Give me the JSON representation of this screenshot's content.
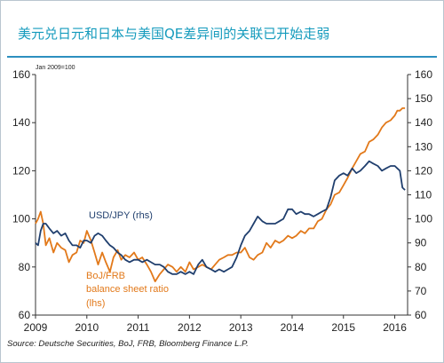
{
  "title": "美元兑日元和日本与美国QE差异间的关联已开始走弱",
  "source": "Source: Deutsche Securities, BoJ, FRB, Bloomberg Finance L.P.",
  "chart_data": {
    "type": "line",
    "note": "Jan 2009=100",
    "x_ticks": [
      "2009",
      "2010",
      "2011",
      "2012",
      "2013",
      "2014",
      "2015",
      "2016"
    ],
    "xlim": [
      2009.0,
      2016.25
    ],
    "left_axis": {
      "ylim": [
        60,
        160
      ],
      "ticks": [
        60,
        80,
        100,
        120,
        140,
        160
      ]
    },
    "right_axis": {
      "ylim": [
        60,
        160
      ],
      "ticks": [
        60,
        70,
        80,
        90,
        100,
        110,
        120,
        130,
        140,
        150,
        160
      ]
    },
    "annotations": {
      "usd_jpy": "USD/JPY (rhs)",
      "boj_frb_line1": "BoJ/FRB",
      "boj_frb_line2": "balance sheet ratio",
      "boj_frb_line3": "(lhs)"
    },
    "series": [
      {
        "name": "USD/JPY (rhs)",
        "axis": "right",
        "color": "#203f6e",
        "x": [
          2009.0,
          2009.05,
          2009.1,
          2009.15,
          2009.2,
          2009.27,
          2009.35,
          2009.42,
          2009.5,
          2009.58,
          2009.65,
          2009.72,
          2009.8,
          2009.87,
          2009.94,
          2010.0,
          2010.08,
          2010.15,
          2010.22,
          2010.3,
          2010.37,
          2010.45,
          2010.52,
          2010.6,
          2010.67,
          2010.75,
          2010.83,
          2010.92,
          2011.0,
          2011.08,
          2011.17,
          2011.25,
          2011.33,
          2011.42,
          2011.5,
          2011.58,
          2011.67,
          2011.75,
          2011.83,
          2011.92,
          2012.0,
          2012.08,
          2012.17,
          2012.25,
          2012.33,
          2012.42,
          2012.5,
          2012.58,
          2012.67,
          2012.75,
          2012.83,
          2012.92,
          2013.0,
          2013.08,
          2013.17,
          2013.25,
          2013.33,
          2013.42,
          2013.5,
          2013.58,
          2013.67,
          2013.75,
          2013.83,
          2013.92,
          2014.0,
          2014.08,
          2014.17,
          2014.25,
          2014.33,
          2014.42,
          2014.5,
          2014.58,
          2014.67,
          2014.75,
          2014.83,
          2014.92,
          2015.0,
          2015.08,
          2015.17,
          2015.25,
          2015.33,
          2015.42,
          2015.5,
          2015.58,
          2015.67,
          2015.75,
          2015.83,
          2015.92,
          2016.0,
          2016.05,
          2016.1,
          2016.15,
          2016.2
        ],
        "values": [
          90,
          89,
          95,
          98,
          98,
          96,
          94,
          95,
          93,
          94,
          91,
          89,
          89,
          88,
          91,
          91,
          90,
          93,
          94,
          93,
          91,
          89,
          88,
          86,
          85,
          83,
          82,
          83,
          83,
          82,
          83,
          82,
          81,
          81,
          80,
          78,
          77,
          77,
          78,
          77,
          78,
          77,
          81,
          83,
          80,
          79,
          78,
          79,
          78,
          79,
          80,
          84,
          89,
          93,
          95,
          98,
          101,
          99,
          98,
          98,
          98,
          99,
          100,
          104,
          104,
          102,
          103,
          102,
          102,
          101,
          102,
          103,
          104,
          109,
          116,
          118,
          119,
          118,
          121,
          119,
          120,
          122,
          124,
          123,
          122,
          120,
          121,
          122,
          122,
          121,
          120,
          113,
          112
        ]
      },
      {
        "name": "BoJ/FRB balance sheet ratio (lhs)",
        "axis": "left",
        "color": "#e2791a",
        "x": [
          2009.0,
          2009.05,
          2009.1,
          2009.15,
          2009.2,
          2009.27,
          2009.35,
          2009.42,
          2009.5,
          2009.58,
          2009.65,
          2009.72,
          2009.8,
          2009.87,
          2009.94,
          2010.0,
          2010.08,
          2010.15,
          2010.22,
          2010.3,
          2010.37,
          2010.45,
          2010.52,
          2010.6,
          2010.67,
          2010.75,
          2010.83,
          2010.92,
          2011.0,
          2011.08,
          2011.17,
          2011.25,
          2011.33,
          2011.42,
          2011.5,
          2011.58,
          2011.67,
          2011.75,
          2011.83,
          2011.92,
          2012.0,
          2012.08,
          2012.17,
          2012.25,
          2012.33,
          2012.42,
          2012.5,
          2012.58,
          2012.67,
          2012.75,
          2012.83,
          2012.92,
          2013.0,
          2013.08,
          2013.17,
          2013.25,
          2013.33,
          2013.42,
          2013.5,
          2013.58,
          2013.67,
          2013.75,
          2013.83,
          2013.92,
          2014.0,
          2014.08,
          2014.17,
          2014.25,
          2014.33,
          2014.42,
          2014.5,
          2014.58,
          2014.67,
          2014.75,
          2014.83,
          2014.92,
          2015.0,
          2015.08,
          2015.17,
          2015.25,
          2015.33,
          2015.42,
          2015.5,
          2015.58,
          2015.67,
          2015.75,
          2015.83,
          2015.92,
          2016.0,
          2016.05,
          2016.1,
          2016.15,
          2016.2
        ],
        "values": [
          98,
          100,
          103,
          98,
          89,
          92,
          86,
          90,
          88,
          87,
          82,
          85,
          86,
          91,
          90,
          95,
          91,
          86,
          81,
          86,
          82,
          78,
          84,
          87,
          83,
          85,
          84,
          86,
          83,
          84,
          81,
          78,
          74,
          77,
          79,
          81,
          80,
          78,
          80,
          78,
          82,
          79,
          80,
          81,
          80,
          79,
          81,
          83,
          84,
          85,
          85,
          86,
          86,
          88,
          84,
          83,
          85,
          86,
          90,
          88,
          91,
          90,
          91,
          93,
          92,
          93,
          95,
          94,
          96,
          96,
          99,
          100,
          104,
          106,
          110,
          111,
          114,
          117,
          121,
          124,
          127,
          128,
          132,
          133,
          135,
          138,
          140,
          141,
          143,
          145,
          145,
          146,
          146
        ]
      }
    ]
  }
}
